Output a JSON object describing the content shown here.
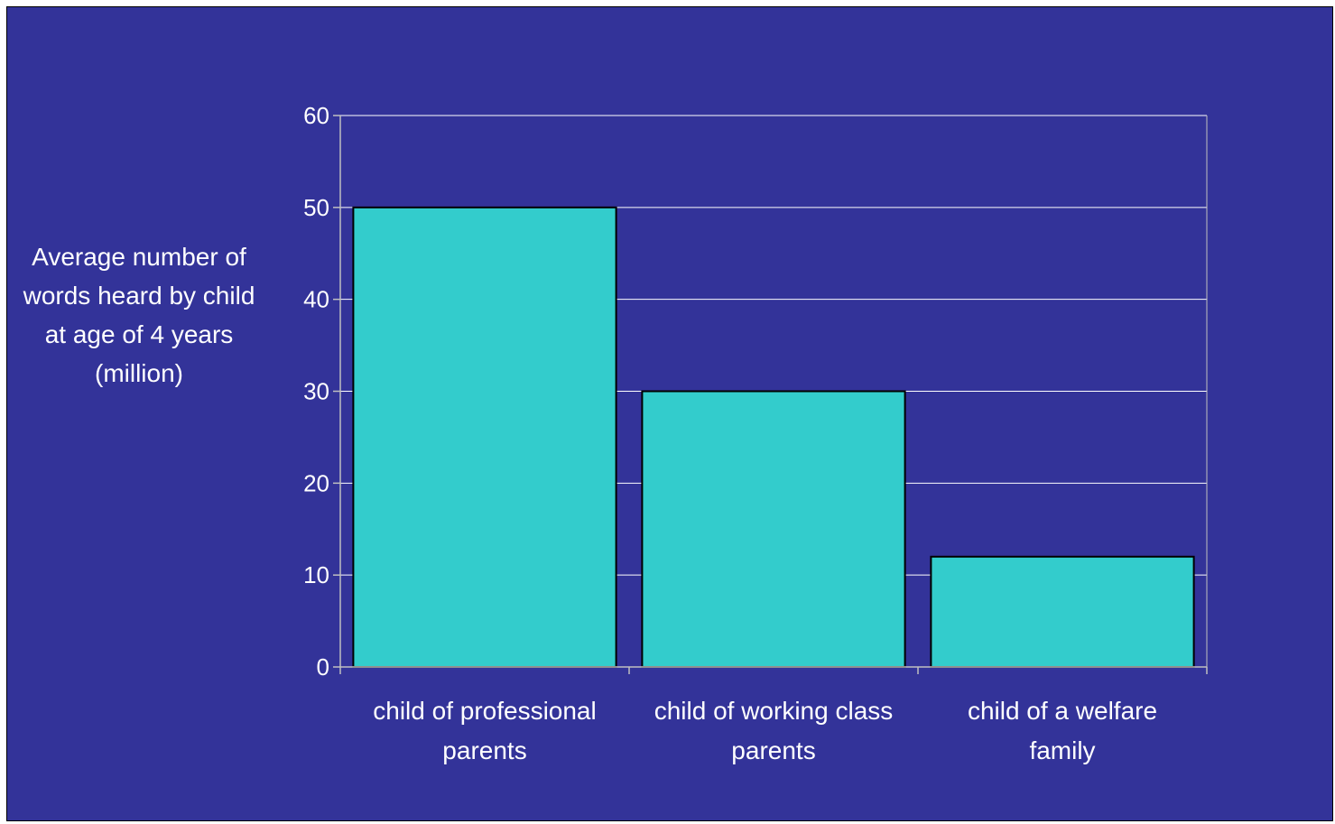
{
  "chart_data": {
    "type": "bar",
    "title": "",
    "xlabel": "",
    "ylabel_lines": [
      "Average number of",
      "words heard by child",
      "at age of 4 years",
      "(million)"
    ],
    "categories": [
      [
        "child of professional",
        "parents"
      ],
      [
        "child of working class",
        "parents"
      ],
      [
        "child of a welfare",
        "family"
      ]
    ],
    "values": [
      50,
      30,
      12
    ],
    "ylim": [
      0,
      60
    ],
    "yticks": [
      "0",
      "10",
      "20",
      "30",
      "40",
      "50",
      "60"
    ],
    "grid": true,
    "legend": "none",
    "colors": {
      "background": "#333399",
      "bar_fill": "#33CCCC",
      "bar_stroke": "#000000",
      "axis": "#C0C0C0",
      "grid": "#FFFFFF",
      "text": "#FFFFFF"
    }
  }
}
